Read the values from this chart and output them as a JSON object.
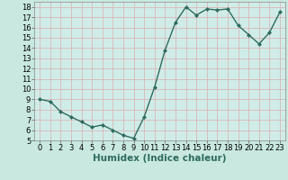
{
  "x": [
    0,
    1,
    2,
    3,
    4,
    5,
    6,
    7,
    8,
    9,
    10,
    11,
    12,
    13,
    14,
    15,
    16,
    17,
    18,
    19,
    20,
    21,
    22,
    23
  ],
  "y": [
    9.0,
    8.8,
    7.8,
    7.3,
    6.8,
    6.3,
    6.5,
    6.0,
    5.5,
    5.2,
    7.3,
    10.2,
    13.8,
    16.5,
    18.0,
    17.2,
    17.8,
    17.7,
    17.8,
    16.2,
    15.3,
    14.4,
    15.5,
    17.5
  ],
  "line_color": "#2e6b5e",
  "marker": "D",
  "marker_size": 2,
  "bg_color": "#c8e8e0",
  "grid_color": "#d8b8b8",
  "plot_bg_color": "#d0ece8",
  "xlabel": "Humidex (Indice chaleur)",
  "xlim": [
    -0.5,
    23.5
  ],
  "ylim": [
    5,
    18.5
  ],
  "yticks": [
    5,
    6,
    7,
    8,
    9,
    10,
    11,
    12,
    13,
    14,
    15,
    16,
    17,
    18
  ],
  "xticks": [
    0,
    1,
    2,
    3,
    4,
    5,
    6,
    7,
    8,
    9,
    10,
    11,
    12,
    13,
    14,
    15,
    16,
    17,
    18,
    19,
    20,
    21,
    22,
    23
  ],
  "tick_fontsize": 6,
  "label_fontsize": 7.5,
  "linewidth": 1.0
}
